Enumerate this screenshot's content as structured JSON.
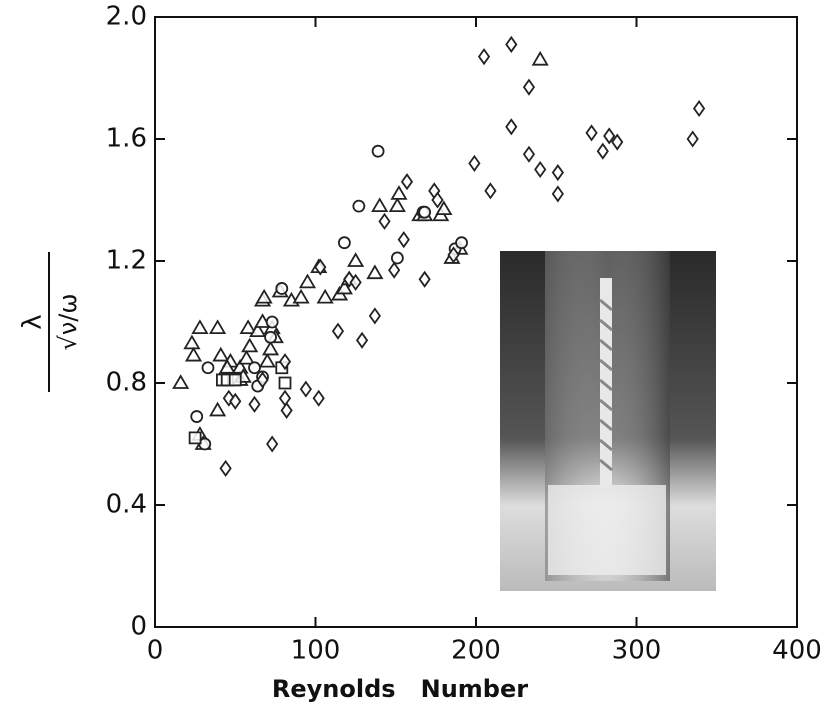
{
  "chart_data": {
    "type": "scatter",
    "xlabel": "Reynolds   Number",
    "ylabel_numerator": "λ",
    "ylabel_denominator": "√ν/ω",
    "xlim": [
      0,
      400
    ],
    "ylim": [
      0,
      2
    ],
    "xticks": [
      0,
      100,
      200,
      300,
      400
    ],
    "yticks": [
      0,
      0.4,
      0.8,
      1.2,
      1.6,
      {
        "value": 2,
        "label": "2.0"
      }
    ],
    "series": [
      {
        "marker": "triangle",
        "color": "#222222",
        "x": [
          16,
          23,
          24,
          28,
          39,
          28,
          30,
          41,
          47,
          39,
          53,
          58,
          59,
          64,
          67,
          68,
          57,
          70,
          73,
          75,
          78,
          85,
          91,
          95,
          102,
          106,
          115,
          118,
          121,
          125,
          137,
          140,
          151,
          152,
          165,
          168,
          178,
          180,
          185,
          190,
          240,
          53,
          45,
          55,
          67,
          72
        ],
        "values": [
          0.8,
          0.93,
          0.89,
          0.98,
          0.98,
          0.63,
          0.6,
          0.89,
          0.87,
          0.71,
          0.85,
          0.98,
          0.92,
          0.97,
          1.07,
          1.08,
          0.88,
          0.87,
          0.98,
          0.95,
          1.1,
          1.07,
          1.08,
          1.13,
          1.18,
          1.08,
          1.09,
          1.11,
          1.14,
          1.2,
          1.16,
          1.38,
          1.38,
          1.42,
          1.35,
          1.35,
          1.35,
          1.37,
          1.21,
          1.24,
          1.86,
          0.81,
          0.85,
          0.82,
          1.0,
          0.91
        ]
      },
      {
        "marker": "circle",
        "color": "#222222",
        "x": [
          26,
          33,
          31,
          62,
          67,
          72,
          73,
          79,
          118,
          127,
          139,
          151,
          167,
          168,
          187,
          191,
          64
        ],
        "values": [
          0.69,
          0.85,
          0.6,
          0.85,
          0.82,
          0.95,
          1.0,
          1.11,
          1.26,
          1.38,
          1.56,
          1.21,
          1.36,
          1.36,
          1.24,
          1.26,
          0.79
        ]
      },
      {
        "marker": "square",
        "color": "#222222",
        "x": [
          25,
          42,
          45,
          50,
          81,
          79
        ],
        "values": [
          0.62,
          0.81,
          0.81,
          0.81,
          0.8,
          0.85
        ]
      },
      {
        "marker": "diamond",
        "color": "#222222",
        "x": [
          44,
          46,
          50,
          62,
          67,
          73,
          81,
          81,
          82,
          94,
          102,
          103,
          114,
          121,
          125,
          129,
          137,
          143,
          149,
          155,
          157,
          168,
          174,
          176,
          186,
          199,
          209,
          205,
          222,
          222,
          233,
          233,
          240,
          251,
          251,
          272,
          279,
          283,
          288,
          335,
          339
        ],
        "values": [
          0.52,
          0.75,
          0.74,
          0.73,
          0.81,
          0.6,
          0.87,
          0.75,
          0.71,
          0.78,
          0.75,
          1.18,
          0.97,
          1.14,
          1.13,
          0.94,
          1.02,
          1.33,
          1.17,
          1.27,
          1.46,
          1.14,
          1.43,
          1.4,
          1.22,
          1.52,
          1.43,
          1.87,
          1.91,
          1.64,
          1.77,
          1.55,
          1.5,
          1.49,
          1.42,
          1.62,
          1.56,
          1.61,
          1.59,
          1.6,
          1.7
        ]
      }
    ]
  }
}
